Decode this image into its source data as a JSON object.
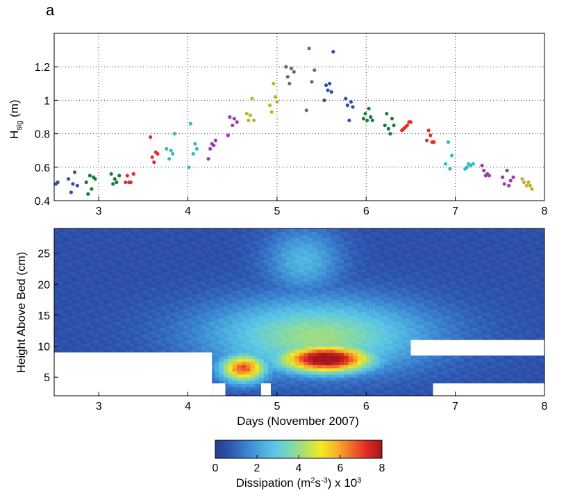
{
  "panel_label": "a",
  "colors": {
    "axis": "#000000",
    "grid": "#333333",
    "colormap": [
      "#2a3a8c",
      "#2e56b0",
      "#3a80cf",
      "#4aa9de",
      "#5cc8e6",
      "#7fd8b0",
      "#b8e060",
      "#f3e923",
      "#f9b22a",
      "#f06a2c",
      "#e02a22",
      "#a3161c"
    ]
  },
  "chart_data": [
    {
      "type": "scatter",
      "title": "",
      "xlabel": "",
      "ylabel": "H",
      "ylabel_sub": "sig",
      "ylabel_unit": " (m)",
      "xlim": [
        2.5,
        8
      ],
      "ylim": [
        0.4,
        1.4
      ],
      "xticks": [
        3,
        4,
        5,
        6,
        7,
        8
      ],
      "yticks": [
        0.4,
        0.6,
        0.8,
        1,
        1.2
      ],
      "ytick_labels": [
        "0.4",
        "0.6",
        "0.8",
        "1",
        "1.2"
      ],
      "grid": "dotted",
      "groups": [
        {
          "color": "#2d4fa8",
          "x": [
            2.52,
            2.54,
            2.66,
            2.69,
            2.71,
            2.73,
            2.76
          ],
          "y": [
            0.5,
            0.51,
            0.53,
            0.45,
            0.5,
            0.57,
            0.49
          ]
        },
        {
          "color": "#1b7a3e",
          "x": [
            2.86,
            2.88,
            2.9,
            2.92,
            2.94,
            2.96
          ],
          "y": [
            0.51,
            0.44,
            0.55,
            0.47,
            0.54,
            0.53
          ]
        },
        {
          "color": "#1b7a3e",
          "x": [
            3.14,
            3.16,
            3.18,
            3.2,
            3.23
          ],
          "y": [
            0.56,
            0.5,
            0.53,
            0.51,
            0.55
          ]
        },
        {
          "color": "#e62b2b",
          "x": [
            3.3,
            3.32,
            3.34,
            3.36,
            3.39
          ],
          "y": [
            0.51,
            0.55,
            0.51,
            0.51,
            0.56
          ]
        },
        {
          "color": "#e62b2b",
          "x": [
            3.58,
            3.6,
            3.62,
            3.64,
            3.66
          ],
          "y": [
            0.78,
            0.66,
            0.63,
            0.69,
            0.68
          ]
        },
        {
          "color": "#2ebcc7",
          "x": [
            3.76,
            3.79,
            3.81,
            3.83,
            3.85
          ],
          "y": [
            0.71,
            0.65,
            0.7,
            0.68,
            0.8
          ]
        },
        {
          "color": "#2ebcc7",
          "x": [
            4.01,
            4.03,
            4.06,
            4.08,
            4.1
          ],
          "y": [
            0.6,
            0.86,
            0.68,
            0.74,
            0.71
          ]
        },
        {
          "color": "#9c3ca8",
          "x": [
            4.23,
            4.25,
            4.27,
            4.29,
            4.31
          ],
          "y": [
            0.65,
            0.71,
            0.74,
            0.73,
            0.76
          ]
        },
        {
          "color": "#9c3ca8",
          "x": [
            4.45,
            4.47,
            4.5,
            4.52,
            4.55
          ],
          "y": [
            0.79,
            0.9,
            0.85,
            0.89,
            0.87
          ]
        },
        {
          "color": "#b9b724",
          "x": [
            4.66,
            4.68,
            4.7,
            4.72,
            4.74
          ],
          "y": [
            0.92,
            0.88,
            0.91,
            1.01,
            0.88
          ]
        },
        {
          "color": "#b9b724",
          "x": [
            4.92,
            4.94,
            4.96,
            4.98,
            5.0
          ],
          "y": [
            0.97,
            0.93,
            1.1,
            1.02,
            0.99
          ]
        },
        {
          "color": "#6b6b6b",
          "x": [
            5.1,
            5.12,
            5.14,
            5.16,
            5.19
          ],
          "y": [
            1.2,
            1.14,
            1.1,
            1.19,
            1.17
          ]
        },
        {
          "color": "#6b6b6b",
          "x": [
            5.33,
            5.36,
            5.39,
            5.42
          ],
          "y": [
            0.94,
            1.31,
            1.11,
            1.18
          ]
        },
        {
          "color": "#2d4fa8",
          "x": [
            5.53,
            5.55,
            5.57,
            5.59,
            5.61,
            5.63
          ],
          "y": [
            1.0,
            1.09,
            1.06,
            1.1,
            1.05,
            1.29
          ]
        },
        {
          "color": "#2d4fa8",
          "x": [
            5.77,
            5.79,
            5.81,
            5.83,
            5.85
          ],
          "y": [
            1.01,
            0.97,
            0.88,
            0.99,
            0.96
          ]
        },
        {
          "color": "#1b7a3e",
          "x": [
            5.97,
            5.99,
            6.01,
            6.03,
            6.05,
            6.07
          ],
          "y": [
            0.89,
            0.92,
            0.88,
            0.95,
            0.9,
            0.88
          ]
        },
        {
          "color": "#1b7a3e",
          "x": [
            6.21,
            6.23,
            6.25,
            6.27,
            6.29,
            6.31
          ],
          "y": [
            0.85,
            0.92,
            0.83,
            0.8,
            0.89,
            0.85
          ]
        },
        {
          "color": "#e62b2b",
          "x": [
            6.4,
            6.42,
            6.44,
            6.46,
            6.48,
            6.5
          ],
          "y": [
            0.82,
            0.83,
            0.84,
            0.85,
            0.87,
            0.87
          ]
        },
        {
          "color": "#e62b2b",
          "x": [
            6.68,
            6.7,
            6.72,
            6.74,
            6.76
          ],
          "y": [
            0.76,
            0.82,
            0.79,
            0.75,
            0.75
          ]
        },
        {
          "color": "#2ebcc7",
          "x": [
            6.89,
            6.92,
            6.94,
            6.96
          ],
          "y": [
            0.62,
            0.75,
            0.59,
            0.67
          ]
        },
        {
          "color": "#2ebcc7",
          "x": [
            7.11,
            7.13,
            7.15,
            7.17,
            7.2
          ],
          "y": [
            0.59,
            0.6,
            0.62,
            0.61,
            0.62
          ]
        },
        {
          "color": "#9c3ca8",
          "x": [
            7.3,
            7.32,
            7.34,
            7.36,
            7.38
          ],
          "y": [
            0.61,
            0.58,
            0.55,
            0.56,
            0.55
          ]
        },
        {
          "color": "#9c3ca8",
          "x": [
            7.53,
            7.55,
            7.58,
            7.6,
            7.62,
            7.65
          ],
          "y": [
            0.54,
            0.5,
            0.58,
            0.49,
            0.52,
            0.54
          ]
        },
        {
          "color": "#b9b724",
          "x": [
            7.75,
            7.77,
            7.8,
            7.82,
            7.84,
            7.86
          ],
          "y": [
            0.53,
            0.51,
            0.49,
            0.51,
            0.49,
            0.47
          ]
        }
      ]
    },
    {
      "type": "heatmap",
      "title": "",
      "xlabel": "Days (November 2007)",
      "ylabel": "Height Above Bed (cm)",
      "xlim": [
        2.5,
        8
      ],
      "ylim": [
        2,
        29
      ],
      "xticks": [
        3,
        4,
        5,
        6,
        7,
        8
      ],
      "yticks": [
        5,
        10,
        15,
        20,
        25
      ],
      "value_unit": "Dissipation x 10^3 (m^2 s^-3)",
      "gaps_no_data": [
        {
          "x": [
            2.5,
            4.27
          ],
          "y": [
            2,
            9
          ]
        },
        {
          "x": [
            4.27,
            4.42
          ],
          "y": [
            2,
            4
          ]
        },
        {
          "x": [
            4.82,
            4.93
          ],
          "y": [
            2,
            4
          ]
        },
        {
          "x": [
            6.75,
            8
          ],
          "y": [
            2,
            4
          ]
        },
        {
          "x": [
            6.5,
            8
          ],
          "y": [
            8.5,
            11
          ]
        }
      ],
      "hotspots": [
        {
          "x": 5.55,
          "y": 8,
          "value": 7.8,
          "sx": 0.5,
          "sy": 2.2
        },
        {
          "x": 4.62,
          "y": 6.5,
          "value": 6.0,
          "sx": 0.25,
          "sy": 2.2
        },
        {
          "x": 5.45,
          "y": 12,
          "value": 3.5,
          "sx": 1.2,
          "sy": 5.5
        },
        {
          "x": 5.3,
          "y": 24,
          "value": 2.1,
          "sx": 0.4,
          "sy": 5
        }
      ],
      "background_value": 0.4
    }
  ],
  "colorbar": {
    "ticks": [
      "0",
      "2",
      "4",
      "6",
      "8"
    ],
    "range": [
      0,
      8
    ],
    "label_main": "Dissipation (m",
    "label_sup1": "2",
    "label_mid": "s",
    "label_sup2": "-3",
    "label_end": ") x 10",
    "label_sup3": "3"
  }
}
